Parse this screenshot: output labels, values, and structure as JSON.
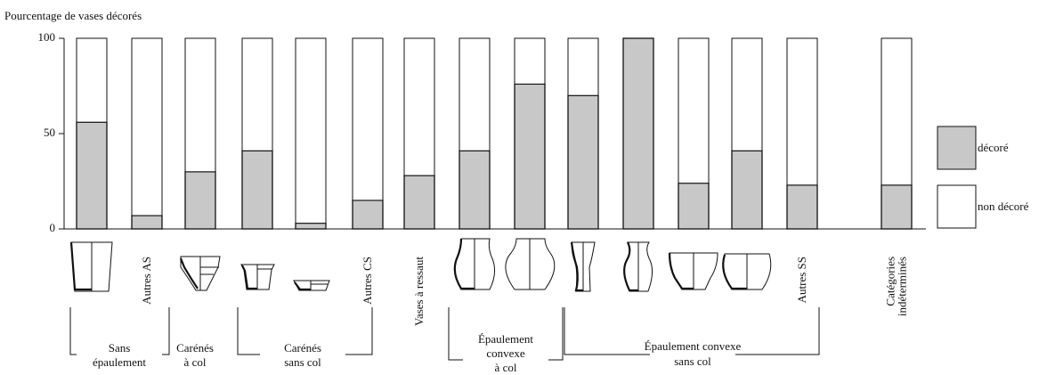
{
  "chart_data": {
    "type": "stacked-bar",
    "title": "Pourcentage de vases décorés",
    "categories": [
      null,
      "Autres AS",
      null,
      null,
      null,
      "Autres CS",
      "Vases à ressaut",
      null,
      null,
      null,
      null,
      null,
      null,
      "Autres SS",
      "Catégories indéterminés"
    ],
    "series": [
      {
        "name": "décoré",
        "color": "#c8c8c8",
        "values": [
          56,
          7,
          30,
          41,
          3,
          15,
          28,
          41,
          76,
          70,
          100,
          24,
          41,
          23,
          23
        ]
      },
      {
        "name": "non décoré",
        "color": "#ffffff",
        "values": [
          44,
          93,
          70,
          59,
          97,
          85,
          72,
          59,
          24,
          30,
          0,
          76,
          59,
          77,
          77
        ]
      }
    ],
    "ylim": [
      0,
      100
    ],
    "yticks": [
      0,
      50,
      100
    ],
    "groups": [
      {
        "lines": [
          "Sans",
          "épaulement"
        ]
      },
      {
        "lines": [
          "Carénés",
          "à col"
        ]
      },
      {
        "lines": [
          "Carénés",
          "sans col"
        ]
      },
      {
        "lines": [
          "Épaulement",
          "convexe",
          "à col"
        ]
      },
      {
        "lines": [
          "Épaulement convexe",
          "sans col"
        ]
      }
    ]
  }
}
